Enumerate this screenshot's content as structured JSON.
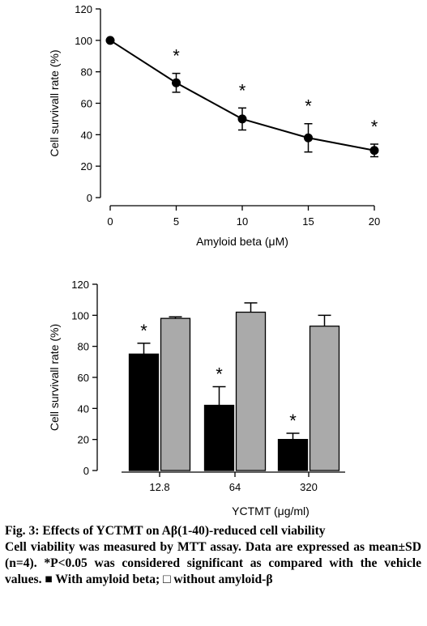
{
  "chart_data": [
    {
      "type": "line",
      "x": [
        0,
        5,
        10,
        15,
        20
      ],
      "x_tick_labels": [
        "0",
        "5",
        "10",
        "15",
        "20"
      ],
      "series": [
        {
          "values": [
            100,
            73,
            50,
            38,
            30
          ],
          "errors": [
            0,
            6,
            7,
            9,
            4
          ]
        }
      ],
      "significance": [
        "",
        "*",
        "*",
        "*",
        "*"
      ],
      "xlabel": "Amyloid beta (μM)",
      "ylabel": "Cell survivall rate (%)",
      "xlim": [
        0,
        20
      ],
      "ylim": [
        0,
        120
      ],
      "y_ticks": [
        0,
        20,
        40,
        60,
        80,
        100,
        120
      ],
      "grid": false
    },
    {
      "type": "bar",
      "categories": [
        "12.8",
        "64",
        "320"
      ],
      "series": [
        {
          "color": "#000000",
          "values": [
            75,
            42,
            20
          ],
          "errors": [
            7,
            12,
            4
          ]
        },
        {
          "color": "#aaaaaa",
          "values": [
            98,
            102,
            93
          ],
          "errors": [
            1,
            6,
            7
          ]
        }
      ],
      "significance": [
        "*",
        "*",
        "*"
      ],
      "xlabel": "YCTMT (μg/ml)",
      "ylabel": "Cell survivall rate (%)",
      "ylim": [
        0,
        120
      ],
      "y_ticks": [
        0,
        20,
        40,
        60,
        80,
        100,
        120
      ],
      "grid": false
    }
  ],
  "caption": {
    "title": "Fig. 3: Effects of YCTMT on Aβ(1-40)-reduced cell viability",
    "body": "Cell viability was measured by MTT assay. Data are expressed as mean±SD (n=4). *P<0.05 was considered significant as compared with the vehicle values. ■ With amyloid beta; □ without amyloid-β"
  }
}
